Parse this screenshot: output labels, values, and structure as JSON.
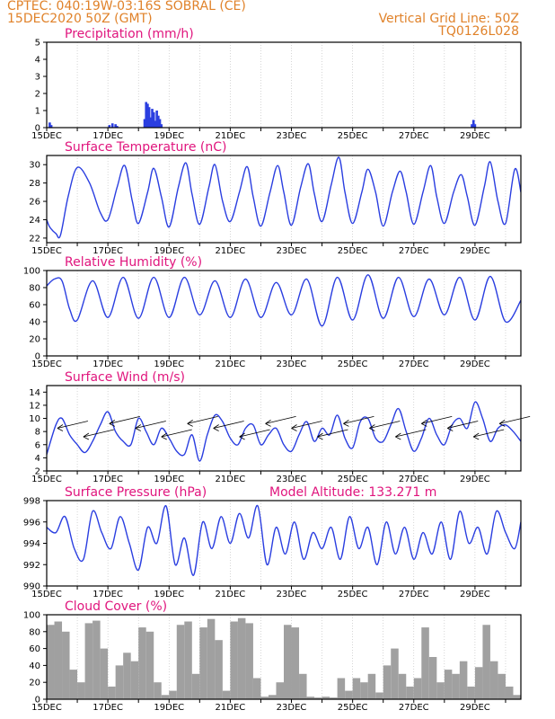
{
  "header": {
    "line1": "CPTEC:  040:19W-03:16S  SOBRAL (CE)",
    "line2": "15DEC2020 50Z (GMT)",
    "right1": "Vertical Grid Line: 50Z",
    "right2": "TQ0126L028"
  },
  "colors": {
    "header": "#e0822a",
    "title": "#e0157d",
    "line": "#2a3ee0",
    "bar": "#2a3ee0",
    "cloud": "#a0a0a0",
    "arrow": "#000000"
  },
  "chart_data": [
    {
      "type": "bar",
      "title": "Precipitation (mm/h)",
      "x_tick_labels": [
        "15DEC",
        "17DEC",
        "19DEC",
        "21DEC",
        "23DEC",
        "25DEC",
        "27DEC",
        "29DEC"
      ],
      "xlim": [
        0,
        15.5
      ],
      "ylim": [
        0,
        5
      ],
      "y_ticks": [
        0,
        1,
        2,
        3,
        4,
        5
      ],
      "x": [
        0.1,
        0.15,
        2.05,
        2.15,
        2.25,
        2.3,
        3.2,
        3.25,
        3.3,
        3.35,
        3.4,
        3.45,
        3.5,
        3.55,
        3.6,
        3.65,
        3.7,
        3.75,
        13.9,
        13.95,
        14.0
      ],
      "values": [
        0.3,
        0.15,
        0.15,
        0.25,
        0.2,
        0.1,
        0.5,
        1.5,
        1.4,
        1.2,
        0.6,
        1.1,
        0.9,
        0.4,
        1.0,
        0.7,
        0.5,
        0.2,
        0.2,
        0.45,
        0.2
      ]
    },
    {
      "type": "line",
      "title": "Surface Temperature (nC)",
      "x_tick_labels": [
        "15DEC",
        "17DEC",
        "19DEC",
        "21DEC",
        "23DEC",
        "25DEC",
        "27DEC",
        "29DEC"
      ],
      "xlim": [
        0,
        15.5
      ],
      "ylim": [
        21.5,
        31
      ],
      "y_ticks": [
        22,
        24,
        26,
        28,
        30
      ],
      "x": [
        0,
        0.1,
        0.3,
        0.45,
        0.7,
        1.0,
        1.4,
        1.75,
        2.0,
        2.3,
        2.55,
        2.8,
        3.0,
        3.3,
        3.5,
        3.75,
        4.0,
        4.3,
        4.55,
        4.75,
        5.0,
        5.3,
        5.5,
        5.75,
        6.0,
        6.3,
        6.55,
        6.75,
        7.0,
        7.3,
        7.55,
        7.75,
        8.0,
        8.3,
        8.55,
        8.75,
        9.0,
        9.3,
        9.55,
        9.75,
        10.0,
        10.3,
        10.5,
        10.75,
        11.0,
        11.3,
        11.55,
        11.75,
        12.0,
        12.3,
        12.55,
        12.75,
        13.0,
        13.3,
        13.55,
        13.75,
        14.0,
        14.3,
        14.5,
        14.75,
        15.0,
        15.3,
        15.5
      ],
      "values": [
        24.0,
        23.2,
        22.5,
        22.3,
        26.5,
        29.7,
        28.0,
        24.8,
        24.0,
        27.5,
        29.9,
        26.0,
        23.6,
        27.0,
        29.6,
        26.5,
        23.2,
        27.5,
        30.2,
        26.8,
        23.5,
        27.5,
        30.0,
        26.0,
        23.8,
        27.0,
        29.8,
        26.5,
        23.3,
        27.0,
        29.9,
        27.0,
        23.4,
        27.5,
        30.1,
        26.8,
        23.8,
        27.8,
        30.8,
        27.0,
        23.6,
        27.0,
        29.5,
        27.0,
        23.3,
        27.0,
        29.3,
        27.0,
        23.5,
        27.0,
        29.9,
        26.5,
        23.6,
        27.0,
        28.9,
        26.5,
        23.4,
        27.5,
        30.3,
        26.0,
        23.6,
        29.5,
        27.0
      ]
    },
    {
      "type": "line",
      "title": "Relative Humidity (%)",
      "x_tick_labels": [
        "15DEC",
        "17DEC",
        "19DEC",
        "21DEC",
        "23DEC",
        "25DEC",
        "27DEC",
        "29DEC"
      ],
      "xlim": [
        0,
        15.5
      ],
      "ylim": [
        0,
        100
      ],
      "y_ticks": [
        0,
        20,
        40,
        60,
        80,
        100
      ],
      "x": [
        0,
        0.25,
        0.5,
        0.75,
        1.0,
        1.5,
        2.0,
        2.5,
        3.0,
        3.5,
        4.0,
        4.5,
        5.0,
        5.5,
        6.0,
        6.5,
        7.0,
        7.5,
        8.0,
        8.5,
        9.0,
        9.5,
        10.0,
        10.5,
        11.0,
        11.5,
        12.0,
        12.5,
        13.0,
        13.5,
        14.0,
        14.5,
        15.0,
        15.5
      ],
      "values": [
        82,
        90,
        88,
        55,
        42,
        88,
        45,
        92,
        44,
        92,
        45,
        92,
        48,
        88,
        45,
        90,
        45,
        86,
        48,
        90,
        35,
        92,
        42,
        95,
        44,
        92,
        46,
        90,
        48,
        92,
        42,
        93,
        40,
        65
      ]
    },
    {
      "type": "line",
      "title": "Surface Wind (m/s)",
      "x_tick_labels": [
        "15DEC",
        "17DEC",
        "19DEC",
        "21DEC",
        "23DEC",
        "25DEC",
        "27DEC",
        "29DEC"
      ],
      "xlim": [
        0,
        15.5
      ],
      "ylim": [
        2,
        15
      ],
      "y_ticks": [
        2,
        4,
        6,
        8,
        10,
        12,
        14
      ],
      "x": [
        0,
        0.3,
        0.5,
        0.75,
        1.0,
        1.25,
        1.5,
        1.75,
        2.0,
        2.25,
        2.5,
        2.75,
        3.0,
        3.25,
        3.5,
        3.75,
        4.0,
        4.25,
        4.5,
        4.75,
        5.0,
        5.25,
        5.5,
        5.75,
        6.0,
        6.25,
        6.5,
        6.75,
        7.0,
        7.25,
        7.5,
        7.75,
        8.0,
        8.25,
        8.5,
        8.75,
        9.0,
        9.25,
        9.5,
        9.75,
        10.0,
        10.25,
        10.5,
        10.75,
        11.0,
        11.25,
        11.5,
        11.75,
        12.0,
        12.25,
        12.5,
        12.75,
        13.0,
        13.25,
        13.5,
        13.75,
        14.0,
        14.25,
        14.5,
        14.75,
        15.0,
        15.25,
        15.5
      ],
      "values": [
        4.5,
        9.0,
        10.0,
        7.5,
        6.0,
        4.8,
        6.5,
        9.0,
        11.0,
        8.0,
        6.5,
        6.0,
        10.0,
        8.0,
        6.0,
        8.5,
        7.0,
        5.0,
        4.5,
        7.5,
        3.5,
        7.5,
        10.5,
        9.5,
        7.0,
        6.0,
        8.5,
        9.0,
        6.0,
        7.5,
        8.5,
        6.0,
        5.0,
        7.5,
        9.5,
        6.5,
        8.5,
        7.5,
        10.5,
        7.0,
        5.5,
        9.5,
        10.0,
        7.0,
        6.5,
        9.0,
        11.5,
        8.0,
        5.0,
        7.0,
        10.0,
        7.5,
        6.0,
        9.0,
        10.0,
        8.5,
        12.5,
        10.0,
        6.5,
        8.5,
        9.0,
        8.0,
        6.5
      ]
    },
    {
      "type": "line",
      "title": "Surface Pressure (hPa)",
      "annotation": "Model Altitude: 133.271 m",
      "x_tick_labels": [
        "15DEC",
        "17DEC",
        "19DEC",
        "21DEC",
        "23DEC",
        "25DEC",
        "27DEC",
        "29DEC"
      ],
      "xlim": [
        0,
        15.5
      ],
      "ylim": [
        990,
        998
      ],
      "y_ticks": [
        990,
        992,
        994,
        996,
        998
      ],
      "x": [
        0,
        0.3,
        0.6,
        0.9,
        1.2,
        1.5,
        1.8,
        2.1,
        2.4,
        2.7,
        3.0,
        3.3,
        3.6,
        3.9,
        4.2,
        4.5,
        4.8,
        5.1,
        5.4,
        5.7,
        6.0,
        6.3,
        6.6,
        6.9,
        7.2,
        7.5,
        7.8,
        8.1,
        8.4,
        8.7,
        9.0,
        9.3,
        9.6,
        9.9,
        10.2,
        10.5,
        10.8,
        11.1,
        11.4,
        11.7,
        12.0,
        12.3,
        12.6,
        12.9,
        13.2,
        13.5,
        13.8,
        14.1,
        14.4,
        14.7,
        15.0,
        15.3,
        15.5
      ],
      "values": [
        995.5,
        995.0,
        996.5,
        993.5,
        992.5,
        997.0,
        995.0,
        993.5,
        996.5,
        994.0,
        991.5,
        995.5,
        994.0,
        997.5,
        992.0,
        994.5,
        991.0,
        996.0,
        993.5,
        996.5,
        994.0,
        996.8,
        994.5,
        997.5,
        992.0,
        995.5,
        993.0,
        996.0,
        992.5,
        995.0,
        993.5,
        995.5,
        992.5,
        996.5,
        993.5,
        995.5,
        992.0,
        996.0,
        993.0,
        995.5,
        992.5,
        995.0,
        993.0,
        996.0,
        992.5,
        997.0,
        994.0,
        995.5,
        993.0,
        997.0,
        995.0,
        993.5,
        996.0
      ]
    },
    {
      "type": "bar",
      "title": "Cloud Cover (%)",
      "x_tick_labels": [
        "15DEC",
        "17DEC",
        "19DEC",
        "21DEC",
        "23DEC",
        "25DEC",
        "27DEC",
        "29DEC"
      ],
      "xlim": [
        0,
        15.5
      ],
      "ylim": [
        0,
        100
      ],
      "y_ticks": [
        0,
        20,
        40,
        60,
        80,
        100
      ],
      "x": [
        0,
        0.25,
        0.5,
        0.75,
        1.0,
        1.25,
        1.5,
        1.75,
        2.0,
        2.25,
        2.5,
        2.75,
        3.0,
        3.25,
        3.5,
        3.75,
        4.0,
        4.25,
        4.5,
        4.75,
        5.0,
        5.25,
        5.5,
        5.75,
        6.0,
        6.25,
        6.5,
        6.75,
        7.0,
        7.25,
        7.5,
        7.75,
        8.0,
        8.25,
        8.5,
        8.75,
        9.0,
        9.25,
        9.5,
        9.75,
        10.0,
        10.25,
        10.5,
        10.75,
        11.0,
        11.25,
        11.5,
        11.75,
        12.0,
        12.25,
        12.5,
        12.75,
        13.0,
        13.25,
        13.5,
        13.75,
        14.0,
        14.25,
        14.5,
        14.75,
        15.0,
        15.25
      ],
      "values": [
        88,
        92,
        80,
        35,
        20,
        90,
        93,
        60,
        15,
        40,
        55,
        45,
        85,
        80,
        20,
        5,
        10,
        88,
        92,
        30,
        85,
        95,
        70,
        10,
        92,
        96,
        90,
        25,
        3,
        5,
        20,
        88,
        85,
        30,
        3,
        2,
        3,
        2,
        25,
        10,
        25,
        20,
        30,
        8,
        40,
        60,
        30,
        15,
        25,
        85,
        50,
        20,
        35,
        30,
        45,
        15,
        38,
        88,
        45,
        30,
        15,
        5
      ]
    }
  ]
}
